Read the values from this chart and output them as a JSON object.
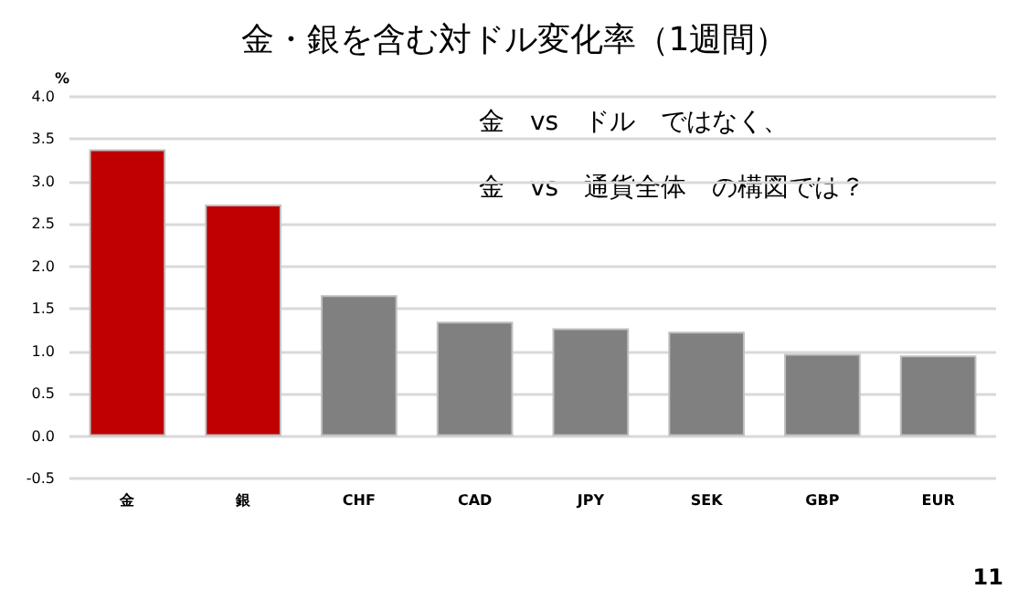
{
  "chart_data": {
    "type": "bar",
    "title": "金・銀を含む対ドル変化率（1週間）",
    "ylabel": "%",
    "categories": [
      "金",
      "銀",
      "CHF",
      "CAD",
      "JPY",
      "SEK",
      "GBP",
      "EUR"
    ],
    "values": [
      3.38,
      2.73,
      1.66,
      1.35,
      1.27,
      1.23,
      0.97,
      0.95
    ],
    "colors": [
      "#c00000",
      "#c00000",
      "#808080",
      "#808080",
      "#808080",
      "#808080",
      "#808080",
      "#808080"
    ],
    "ylim": [
      -0.5,
      4.0
    ],
    "yticks": [
      -0.5,
      {
        "value": 0,
        "label": "0.0"
      },
      0.5,
      {
        "value": 1,
        "label": "1.0"
      },
      1.5,
      {
        "value": 2,
        "label": "2.0"
      },
      2.5,
      {
        "value": 3,
        "label": "3.0"
      },
      3.5,
      {
        "value": 4,
        "label": "4.0"
      }
    ],
    "grid": "y",
    "annotations": [
      "金　vs　ドル　ではなく、",
      "金　vs　通貨全体　の構図では？",
      "11"
    ]
  }
}
